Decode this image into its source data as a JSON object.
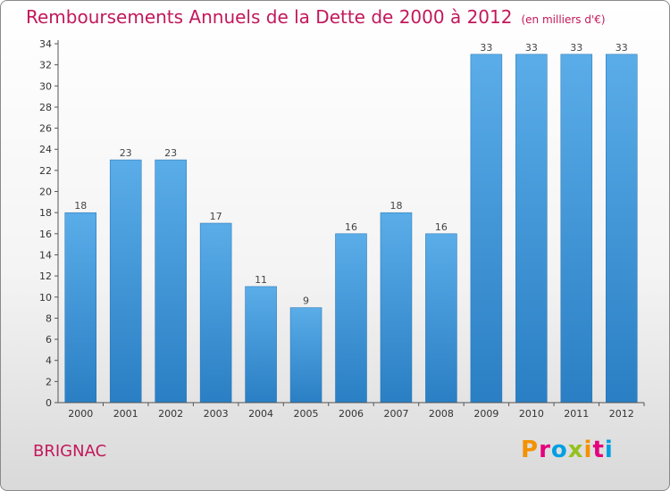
{
  "header": {
    "title": "Remboursements Annuels de la Dette de 2000 à 2012",
    "unit": "(en milliers d'€)"
  },
  "footer": {
    "city": "BRIGNAC",
    "logo": {
      "text": "Proxiti",
      "colors": [
        "#f39200",
        "#e4007c",
        "#009fe3",
        "#95c11f",
        "#f39200",
        "#e4007c",
        "#009fe3"
      ]
    }
  },
  "colors": {
    "bar_light": "#5aade8",
    "bar_dark": "#2a7fc4",
    "axis": "#555555",
    "title": "#c2185b"
  },
  "chart_data": {
    "type": "bar",
    "title": "Remboursements Annuels de la Dette de 2000 à 2012",
    "categories": [
      "2000",
      "2001",
      "2002",
      "2003",
      "2004",
      "2005",
      "2006",
      "2007",
      "2008",
      "2009",
      "2010",
      "2011",
      "2012"
    ],
    "values": [
      18,
      23,
      23,
      17,
      11,
      9,
      16,
      18,
      16,
      33,
      33,
      33,
      33
    ],
    "ylim": [
      0,
      34
    ],
    "yticks": [
      0,
      2,
      4,
      6,
      8,
      10,
      12,
      14,
      16,
      18,
      20,
      22,
      24,
      26,
      28,
      30,
      32,
      34
    ],
    "grid": false,
    "legend": "none"
  }
}
